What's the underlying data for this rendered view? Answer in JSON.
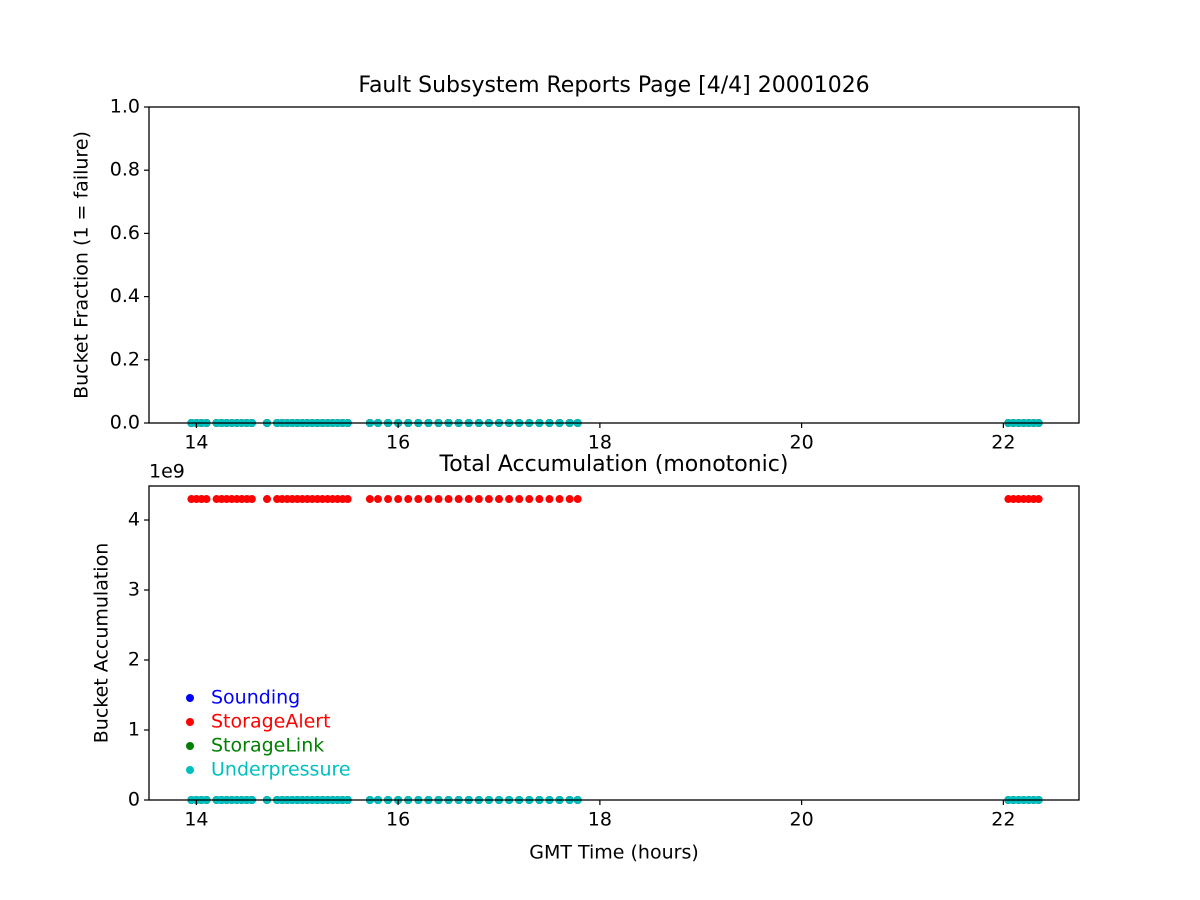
{
  "chart_data": [
    {
      "type": "scatter",
      "title": "Fault Subsystem Reports Page [4/4] 20001026",
      "y_label": "Bucket Fraction (1 = failure)",
      "x": [
        13.95,
        14.0,
        14.05,
        14.1,
        14.2,
        14.25,
        14.3,
        14.35,
        14.4,
        14.45,
        14.5,
        14.55,
        14.7,
        14.8,
        14.85,
        14.9,
        14.95,
        15.0,
        15.05,
        15.1,
        15.15,
        15.2,
        15.25,
        15.3,
        15.35,
        15.4,
        15.45,
        15.5,
        15.72,
        15.8,
        15.9,
        16.0,
        16.1,
        16.2,
        16.3,
        16.4,
        16.5,
        16.6,
        16.7,
        16.8,
        16.9,
        17.0,
        17.1,
        17.2,
        17.3,
        17.4,
        17.5,
        17.6,
        17.7,
        17.78,
        22.05,
        22.1,
        22.15,
        22.2,
        22.25,
        22.3,
        22.35
      ],
      "series": [
        {
          "name": "Sounding",
          "color": "#0000ff",
          "values": [
            0,
            0,
            0,
            0,
            0,
            0,
            0,
            0,
            0,
            0,
            0,
            0,
            0,
            0,
            0,
            0,
            0,
            0,
            0,
            0,
            0,
            0,
            0,
            0,
            0,
            0,
            0,
            0,
            0,
            0,
            0,
            0,
            0,
            0,
            0,
            0,
            0,
            0,
            0,
            0,
            0,
            0,
            0,
            0,
            0,
            0,
            0,
            0,
            0,
            0,
            0,
            0,
            0,
            0,
            0,
            0,
            0
          ]
        },
        {
          "name": "StorageAlert",
          "color": "#ff0000",
          "values": [
            0,
            0,
            0,
            0,
            0,
            0,
            0,
            0,
            0,
            0,
            0,
            0,
            0,
            0,
            0,
            0,
            0,
            0,
            0,
            0,
            0,
            0,
            0,
            0,
            0,
            0,
            0,
            0,
            0,
            0,
            0,
            0,
            0,
            0,
            0,
            0,
            0,
            0,
            0,
            0,
            0,
            0,
            0,
            0,
            0,
            0,
            0,
            0,
            0,
            0,
            0,
            0,
            0,
            0,
            0,
            0,
            0
          ]
        },
        {
          "name": "StorageLink",
          "color": "#008000",
          "values": [
            0,
            0,
            0,
            0,
            0,
            0,
            0,
            0,
            0,
            0,
            0,
            0,
            0,
            0,
            0,
            0,
            0,
            0,
            0,
            0,
            0,
            0,
            0,
            0,
            0,
            0,
            0,
            0,
            0,
            0,
            0,
            0,
            0,
            0,
            0,
            0,
            0,
            0,
            0,
            0,
            0,
            0,
            0,
            0,
            0,
            0,
            0,
            0,
            0,
            0,
            0,
            0,
            0,
            0,
            0,
            0,
            0
          ]
        },
        {
          "name": "Underpressure",
          "color": "#00bfbf",
          "values": [
            0,
            0,
            0,
            0,
            0,
            0,
            0,
            0,
            0,
            0,
            0,
            0,
            0,
            0,
            0,
            0,
            0,
            0,
            0,
            0,
            0,
            0,
            0,
            0,
            0,
            0,
            0,
            0,
            0,
            0,
            0,
            0,
            0,
            0,
            0,
            0,
            0,
            0,
            0,
            0,
            0,
            0,
            0,
            0,
            0,
            0,
            0,
            0,
            0,
            0,
            0,
            0,
            0,
            0,
            0,
            0,
            0
          ]
        }
      ],
      "xlim": [
        13.53,
        22.75
      ],
      "xticks": [
        14,
        16,
        18,
        20,
        22
      ],
      "ylim": [
        0,
        1
      ],
      "yticks": [
        {
          "value": 0,
          "label": "0.0"
        },
        0.2,
        0.4,
        0.6,
        0.8,
        {
          "value": 1,
          "label": "1.0"
        }
      ]
    },
    {
      "type": "scatter",
      "title": "Total Accumulation (monotonic)",
      "x_label": "GMT Time (hours)",
      "y_label": "Bucket Accumulation",
      "y_offset_label": "1e9",
      "x": [
        13.95,
        14.0,
        14.05,
        14.1,
        14.2,
        14.25,
        14.3,
        14.35,
        14.4,
        14.45,
        14.5,
        14.55,
        14.7,
        14.8,
        14.85,
        14.9,
        14.95,
        15.0,
        15.05,
        15.1,
        15.15,
        15.2,
        15.25,
        15.3,
        15.35,
        15.4,
        15.45,
        15.5,
        15.72,
        15.8,
        15.9,
        16.0,
        16.1,
        16.2,
        16.3,
        16.4,
        16.5,
        16.6,
        16.7,
        16.8,
        16.9,
        17.0,
        17.1,
        17.2,
        17.3,
        17.4,
        17.5,
        17.6,
        17.7,
        17.78,
        22.05,
        22.1,
        22.15,
        22.2,
        22.25,
        22.3,
        22.35
      ],
      "series": [
        {
          "name": "Sounding",
          "color": "#0000ff",
          "values": [
            0,
            0,
            0,
            0,
            0,
            0,
            0,
            0,
            0,
            0,
            0,
            0,
            0,
            0,
            0,
            0,
            0,
            0,
            0,
            0,
            0,
            0,
            0,
            0,
            0,
            0,
            0,
            0,
            0,
            0,
            0,
            0,
            0,
            0,
            0,
            0,
            0,
            0,
            0,
            0,
            0,
            0,
            0,
            0,
            0,
            0,
            0,
            0,
            0,
            0,
            0,
            0,
            0,
            0,
            0,
            0,
            0
          ]
        },
        {
          "name": "StorageAlert",
          "color": "#ff0000",
          "values": [
            4300000000,
            4300000000,
            4300000000,
            4300000000,
            4300000000,
            4300000000,
            4300000000,
            4300000000,
            4300000000,
            4300000000,
            4300000000,
            4300000000,
            4300000000,
            4300000000,
            4300000000,
            4300000000,
            4300000000,
            4300000000,
            4300000000,
            4300000000,
            4300000000,
            4300000000,
            4300000000,
            4300000000,
            4300000000,
            4300000000,
            4300000000,
            4300000000,
            4300000000,
            4300000000,
            4300000000,
            4300000000,
            4300000000,
            4300000000,
            4300000000,
            4300000000,
            4300000000,
            4300000000,
            4300000000,
            4300000000,
            4300000000,
            4300000000,
            4300000000,
            4300000000,
            4300000000,
            4300000000,
            4300000000,
            4300000000,
            4300000000,
            4300000000,
            4300000000,
            4300000000,
            4300000000,
            4300000000,
            4300000000,
            4300000000,
            4300000000
          ]
        },
        {
          "name": "StorageLink",
          "color": "#008000",
          "values": [
            0,
            0,
            0,
            0,
            0,
            0,
            0,
            0,
            0,
            0,
            0,
            0,
            0,
            0,
            0,
            0,
            0,
            0,
            0,
            0,
            0,
            0,
            0,
            0,
            0,
            0,
            0,
            0,
            0,
            0,
            0,
            0,
            0,
            0,
            0,
            0,
            0,
            0,
            0,
            0,
            0,
            0,
            0,
            0,
            0,
            0,
            0,
            0,
            0,
            0,
            0,
            0,
            0,
            0,
            0,
            0,
            0
          ]
        },
        {
          "name": "Underpressure",
          "color": "#00bfbf",
          "values": [
            0,
            0,
            0,
            0,
            0,
            0,
            0,
            0,
            0,
            0,
            0,
            0,
            0,
            0,
            0,
            0,
            0,
            0,
            0,
            0,
            0,
            0,
            0,
            0,
            0,
            0,
            0,
            0,
            0,
            0,
            0,
            0,
            0,
            0,
            0,
            0,
            0,
            0,
            0,
            0,
            0,
            0,
            0,
            0,
            0,
            0,
            0,
            0,
            0,
            0,
            0,
            0,
            0,
            0,
            0,
            0,
            0
          ]
        }
      ],
      "xlim": [
        13.53,
        22.75
      ],
      "xticks": [
        14,
        16,
        18,
        20,
        22
      ],
      "ylim": [
        0,
        4486000000
      ],
      "yticks": [
        {
          "value": 0,
          "label": "0"
        },
        {
          "value": 1000000000,
          "label": "1"
        },
        {
          "value": 2000000000,
          "label": "2"
        },
        {
          "value": 3000000000,
          "label": "3"
        },
        {
          "value": 4000000000,
          "label": "4"
        }
      ],
      "legend": "lower left"
    }
  ]
}
